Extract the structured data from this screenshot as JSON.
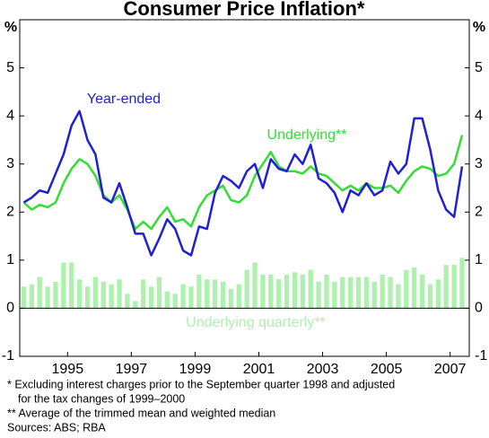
{
  "chart_data": {
    "type": "line",
    "title": "Consumer Price Inflation*",
    "y_label": "%",
    "x": [
      1993.625,
      1993.875,
      1994.125,
      1994.375,
      1994.625,
      1994.875,
      1995.125,
      1995.375,
      1995.625,
      1995.875,
      1996.125,
      1996.375,
      1996.625,
      1996.875,
      1997.125,
      1997.375,
      1997.625,
      1997.875,
      1998.125,
      1998.375,
      1998.625,
      1998.875,
      1999.125,
      1999.375,
      1999.625,
      1999.875,
      2000.125,
      2000.375,
      2000.625,
      2000.875,
      2001.125,
      2001.375,
      2001.625,
      2001.875,
      2002.125,
      2002.375,
      2002.625,
      2002.875,
      2003.125,
      2003.375,
      2003.625,
      2003.875,
      2004.125,
      2004.375,
      2004.625,
      2004.875,
      2005.125,
      2005.375,
      2005.625,
      2005.875,
      2006.125,
      2006.375,
      2006.625,
      2006.875,
      2007.125,
      2007.375
    ],
    "series": [
      {
        "name": "Underlying quarterly**",
        "kind": "bar",
        "color": "#aef0ae",
        "values": [
          0.45,
          0.5,
          0.65,
          0.45,
          0.55,
          0.95,
          0.95,
          0.6,
          0.45,
          0.65,
          0.55,
          0.5,
          0.6,
          0.3,
          0.15,
          0.6,
          0.45,
          0.65,
          0.35,
          0.3,
          0.5,
          0.45,
          0.7,
          0.6,
          0.6,
          0.55,
          0.4,
          0.5,
          0.8,
          0.95,
          0.7,
          0.7,
          0.6,
          0.7,
          0.75,
          0.7,
          0.8,
          0.55,
          0.7,
          0.55,
          0.65,
          0.65,
          0.65,
          0.65,
          0.55,
          0.7,
          0.65,
          0.5,
          0.8,
          0.85,
          0.7,
          0.5,
          0.6,
          0.9,
          0.9,
          1.05
        ]
      },
      {
        "name": "Underlying**",
        "kind": "line",
        "color": "#33dd33",
        "values": [
          2.2,
          2.05,
          2.15,
          2.1,
          2.2,
          2.6,
          2.9,
          3.1,
          3.0,
          2.75,
          2.35,
          2.2,
          2.35,
          2.05,
          1.65,
          1.8,
          1.65,
          1.9,
          2.1,
          1.8,
          1.85,
          1.7,
          2.1,
          2.35,
          2.45,
          2.55,
          2.25,
          2.2,
          2.35,
          2.75,
          3.0,
          3.25,
          2.95,
          2.85,
          2.85,
          2.8,
          2.95,
          2.8,
          2.75,
          2.6,
          2.45,
          2.55,
          2.45,
          2.6,
          2.5,
          2.5,
          2.55,
          2.4,
          2.65,
          2.85,
          2.95,
          2.9,
          2.75,
          2.8,
          3.0,
          3.6
        ]
      },
      {
        "name": "Year-ended",
        "kind": "line",
        "color": "#1f1fd6",
        "values": [
          2.2,
          2.3,
          2.45,
          2.4,
          2.8,
          3.2,
          3.8,
          4.1,
          3.5,
          3.2,
          2.3,
          2.2,
          2.6,
          2.1,
          1.55,
          1.55,
          1.1,
          1.45,
          1.85,
          1.65,
          1.2,
          1.1,
          1.7,
          1.65,
          2.4,
          2.75,
          2.65,
          2.5,
          2.85,
          3.0,
          2.5,
          3.1,
          2.9,
          2.85,
          3.2,
          3.0,
          3.4,
          2.7,
          2.6,
          2.4,
          2.0,
          2.45,
          2.35,
          2.6,
          2.35,
          2.45,
          3.05,
          2.8,
          3.0,
          3.95,
          3.95,
          3.3,
          2.45,
          2.05,
          1.9,
          2.95
        ]
      }
    ],
    "xlim": [
      1993.5,
      2007.6
    ],
    "xticks": [
      1995,
      1997,
      1999,
      2001,
      2003,
      2005,
      2007
    ],
    "ylim": [
      -1,
      6
    ],
    "yticks": [
      -1,
      0,
      1,
      2,
      3,
      4,
      5
    ],
    "notes": [
      "*   Excluding interest charges prior to the September quarter 1998 and adjusted",
      "for the tax changes of 1999–2000",
      "** Average of the trimmed mean and weighted median",
      "Sources: ABS; RBA"
    ]
  }
}
